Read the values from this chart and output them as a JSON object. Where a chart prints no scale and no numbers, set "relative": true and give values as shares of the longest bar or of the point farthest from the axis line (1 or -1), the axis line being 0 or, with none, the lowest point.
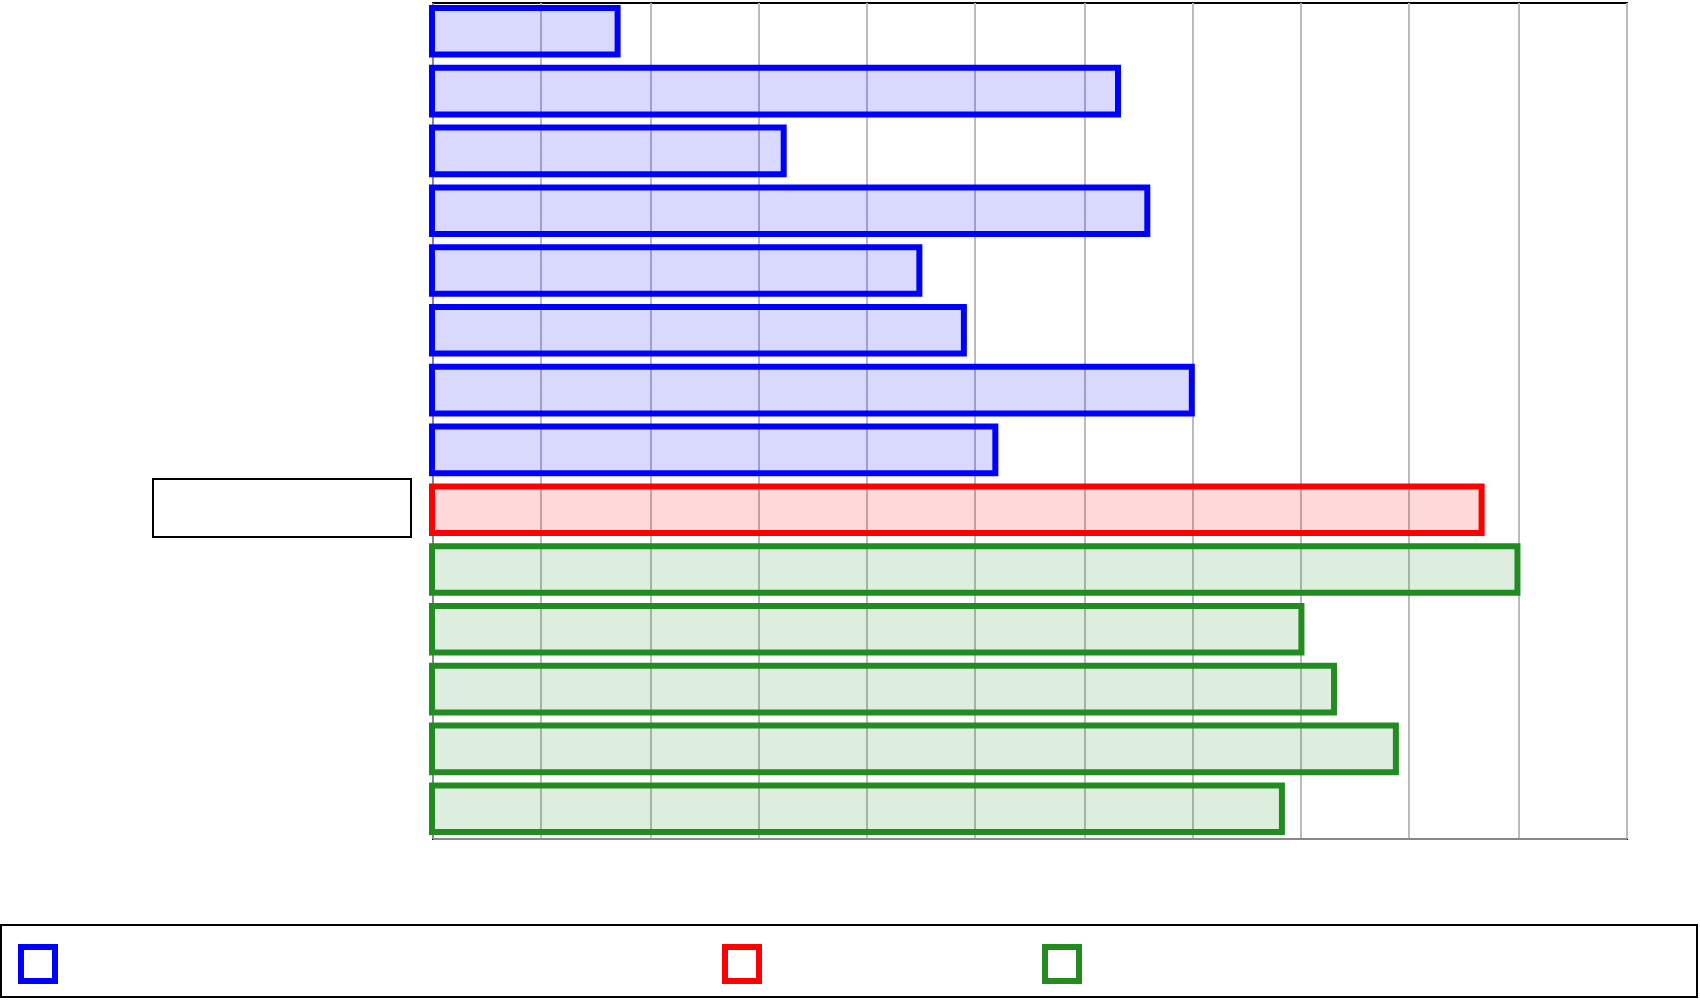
{
  "chart_data": {
    "type": "bar",
    "orientation": "horizontal",
    "relative": true,
    "grid": "x",
    "categories": [
      null,
      null,
      null,
      null,
      null,
      null,
      null,
      null,
      null,
      null,
      null,
      null,
      null,
      null
    ],
    "values": [
      0.171,
      0.632,
      0.324,
      0.659,
      0.449,
      0.49,
      0.7,
      0.519,
      0.967,
      1,
      0.801,
      0.831,
      0.888,
      0.783
    ],
    "colors": [
      "#0000ff",
      "#0000ff",
      "#0000ff",
      "#0000ff",
      "#0000ff",
      "#0000ff",
      "#0000ff",
      "#0000ff",
      "#ff0000",
      "#228b22",
      "#228b22",
      "#228b22",
      "#228b22",
      "#228b22"
    ]
  }
}
